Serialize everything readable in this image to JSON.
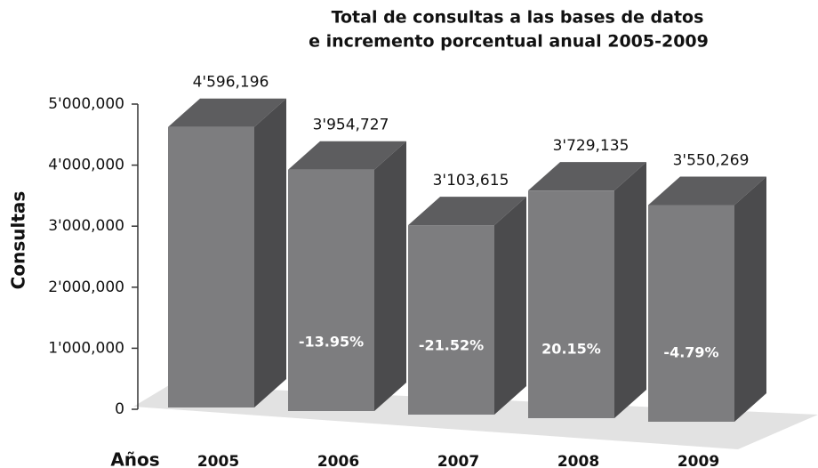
{
  "chart_data": {
    "type": "bar3d",
    "title": "Total de consultas a las bases de datos",
    "subtitle": "e incremento porcentual anual 2005-2009",
    "y_label": "Consultas",
    "x_label": "Años",
    "categories": [
      "2005",
      "2006",
      "2007",
      "2008",
      "2009"
    ],
    "values": [
      4596196,
      3954727,
      3103615,
      3729135,
      3550269
    ],
    "value_labels": [
      "4'596,196",
      "3'954,727",
      "3'103,615",
      "3'729,135",
      "3'550,269"
    ],
    "annotations": [
      null,
      "-13.95%",
      "-21.52%",
      "20.15%",
      "-4.79%"
    ],
    "color": "#7d7d7f",
    "ylim": [
      0,
      5000000
    ],
    "yticks": [
      0,
      {
        "value": 1000000,
        "label": "1'000,000"
      },
      {
        "value": 2000000,
        "label": "2'000,000"
      },
      {
        "value": 3000000,
        "label": "3'000,000"
      },
      {
        "value": 4000000,
        "label": "4'000,000"
      },
      {
        "value": 5000000,
        "label": "5'000,000"
      }
    ]
  }
}
